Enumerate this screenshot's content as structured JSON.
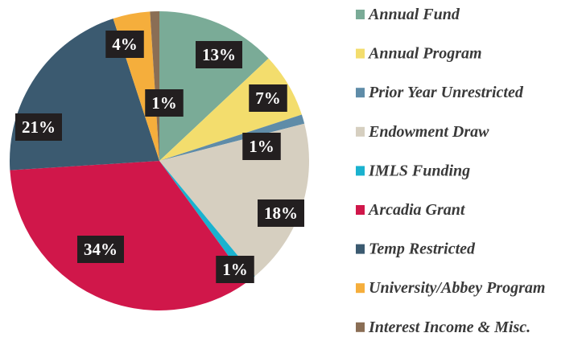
{
  "chart_data": {
    "type": "pie",
    "categories": [
      "Annual Fund",
      "Annual Program",
      "Prior Year Unrestricted",
      "Endowment Draw",
      "IMLS Funding",
      "Arcadia Grant",
      "Temp Restricted",
      "University/Abbey Program",
      "Interest Income & Misc."
    ],
    "values": [
      13,
      7,
      1,
      18,
      1,
      34,
      21,
      4,
      1
    ],
    "value_labels": [
      "13%",
      "7%",
      "1%",
      "18%",
      "1%",
      "34%",
      "21%",
      "4%",
      "1%"
    ],
    "colors": [
      "#7aab97",
      "#f3dd6d",
      "#5f8ca8",
      "#d6cfc0",
      "#1ab2cf",
      "#d0174a",
      "#3b5a70",
      "#f5ae3c",
      "#8a6e55"
    ]
  }
}
